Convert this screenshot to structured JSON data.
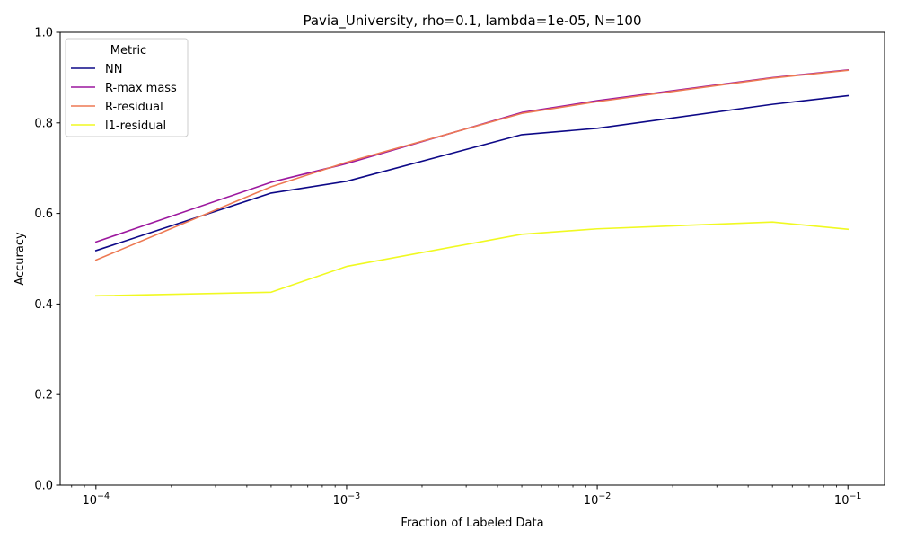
{
  "chart_data": {
    "type": "line",
    "title": "Pavia_University, rho=0.1, lambda=1e-05, N=100",
    "xlabel": "Fraction of Labeled Data",
    "ylabel": "Accuracy",
    "xscale": "log",
    "xlim": [
      7.2e-05,
      0.14
    ],
    "ylim": [
      0.0,
      1.0
    ],
    "x": [
      0.0001,
      0.0005,
      0.001,
      0.005,
      0.01,
      0.05,
      0.1
    ],
    "xticks": [
      {
        "value": 0.0001,
        "base": "10",
        "exp": "−4"
      },
      {
        "value": 0.001,
        "base": "10",
        "exp": "−3"
      },
      {
        "value": 0.01,
        "base": "10",
        "exp": "−2"
      },
      {
        "value": 0.1,
        "base": "10",
        "exp": "−1"
      }
    ],
    "yticks": [
      "0.0",
      "0.2",
      "0.4",
      "0.6",
      "0.8",
      "1.0"
    ],
    "grid": false,
    "legend": {
      "title": "Metric",
      "position": "top-left"
    },
    "series": [
      {
        "name": "NN",
        "color": "#0d0887",
        "values": [
          0.518,
          0.645,
          0.671,
          0.774,
          0.788,
          0.841,
          0.86
        ]
      },
      {
        "name": "R-max mass",
        "color": "#9c179e",
        "values": [
          0.537,
          0.669,
          0.71,
          0.823,
          0.849,
          0.9,
          0.917
        ]
      },
      {
        "name": "R-residual",
        "color": "#ed7953",
        "values": [
          0.497,
          0.659,
          0.713,
          0.821,
          0.847,
          0.899,
          0.916
        ]
      },
      {
        "name": "l1-residual",
        "color": "#f0f921",
        "values": [
          0.418,
          0.426,
          0.483,
          0.554,
          0.566,
          0.581,
          0.565
        ]
      }
    ]
  }
}
